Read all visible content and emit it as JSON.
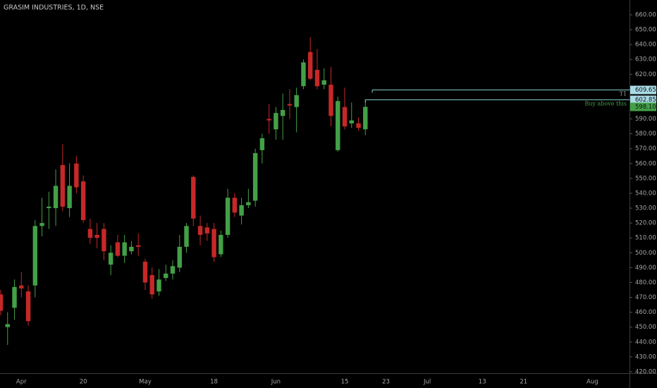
{
  "chart_data": {
    "type": "candlestick",
    "title": "GRASIM INDUSTRIES, 1D, NSE",
    "up_color": "#43a047",
    "down_color": "#c62828",
    "categories": [
      null,
      null,
      null,
      "Apr",
      null,
      null,
      null,
      null,
      null,
      null,
      null,
      null,
      "20",
      null,
      null,
      null,
      null,
      null,
      null,
      null,
      null,
      "May",
      null,
      null,
      null,
      null,
      null,
      null,
      null,
      null,
      null,
      "18",
      null,
      null,
      null,
      null,
      null,
      null,
      null,
      null,
      "Jun",
      null,
      null,
      null,
      null,
      null,
      null,
      null,
      null,
      null,
      "15",
      null,
      null,
      null,
      null,
      null,
      "23",
      null,
      null,
      null,
      null,
      null,
      "Jul",
      null,
      null,
      null,
      null,
      null,
      null,
      null,
      "13",
      null,
      null,
      null,
      null,
      null,
      "21",
      null,
      null,
      null,
      null,
      null,
      null,
      null,
      null,
      null,
      "Aug",
      null,
      null,
      null,
      null,
      null
    ],
    "open": [
      472,
      450,
      463,
      478,
      474,
      478,
      518,
      530,
      530,
      559,
      530,
      560,
      548,
      516,
      512,
      516,
      492,
      507,
      498,
      501,
      505,
      494,
      485,
      474,
      483,
      486,
      490,
      504,
      551,
      518,
      517,
      516,
      499,
      512,
      537,
      525,
      532,
      535,
      569,
      590,
      583,
      592,
      600,
      598,
      612,
      635,
      623,
      613,
      613,
      569,
      598,
      587,
      587,
      583,
      null,
      null,
      null,
      null,
      null,
      null,
      null,
      null,
      null,
      null,
      null,
      null,
      null,
      null,
      null,
      null,
      null,
      null,
      null,
      null,
      null,
      null,
      null,
      null,
      null,
      null,
      null,
      null,
      null,
      null,
      null,
      null,
      null,
      null,
      null,
      null,
      null,
      null
    ],
    "high": [
      475,
      460,
      482,
      487,
      478,
      522,
      537,
      541,
      556,
      573,
      560,
      565,
      552,
      523,
      520,
      520,
      505,
      512,
      512,
      508,
      513,
      496,
      490,
      489,
      492,
      495,
      512,
      520,
      552,
      525,
      520,
      520,
      515,
      543,
      540,
      537,
      543,
      570,
      580,
      600,
      598,
      607,
      610,
      611,
      630,
      645,
      637,
      624,
      625,
      605,
      611,
      601,
      591,
      603,
      null,
      null,
      null,
      null,
      null,
      null,
      null,
      null,
      null,
      null,
      null,
      null,
      null,
      null,
      null,
      null,
      null,
      null,
      null,
      null,
      null,
      null,
      null,
      null,
      null,
      null,
      null,
      null,
      null,
      null,
      null,
      null,
      null,
      null,
      null,
      null,
      null,
      null
    ],
    "low": [
      458,
      438,
      455,
      470,
      451,
      470,
      511,
      516,
      518,
      528,
      524,
      540,
      520,
      506,
      503,
      495,
      485,
      497,
      493,
      499,
      498,
      475,
      469,
      471,
      481,
      482,
      487,
      500,
      518,
      505,
      508,
      494,
      497,
      510,
      524,
      519,
      530,
      531,
      560,
      580,
      576,
      576,
      590,
      581,
      610,
      616,
      610,
      610,
      585,
      568,
      583,
      584,
      582,
      579,
      null,
      null,
      null,
      null,
      null,
      null,
      null,
      null,
      null,
      null,
      null,
      null,
      null,
      null,
      null,
      null,
      null,
      null,
      null,
      null,
      null,
      null,
      null,
      null,
      null,
      null,
      null,
      null,
      null,
      null,
      null,
      null,
      null,
      null,
      null,
      null,
      null,
      null
    ],
    "close": [
      461,
      452,
      477,
      476,
      454,
      518,
      520,
      531,
      545,
      531,
      545,
      544,
      522,
      510,
      510,
      501,
      500,
      498,
      507,
      504,
      504,
      480,
      472,
      482,
      486,
      491,
      504,
      518,
      523,
      512,
      513,
      497,
      512,
      537,
      527,
      532,
      534,
      567,
      577,
      589,
      594,
      596,
      599,
      606,
      628,
      617,
      612,
      616,
      592,
      602,
      585,
      589,
      584,
      598.1,
      null,
      null,
      null,
      null,
      null,
      null,
      null,
      null,
      null,
      null,
      null,
      null,
      null,
      null,
      null,
      null,
      null,
      null,
      null,
      null,
      null,
      null,
      null,
      null,
      null,
      null,
      null,
      null,
      null,
      null,
      null,
      null,
      null,
      null,
      null,
      null,
      null,
      null
    ],
    "ylim": [
      417,
      667
    ],
    "yticks": [
      {
        "value": 420,
        "label": "420.00"
      },
      {
        "value": 430,
        "label": "430.00"
      },
      {
        "value": 440,
        "label": "440.00"
      },
      {
        "value": 450,
        "label": "450.00"
      },
      {
        "value": 460,
        "label": "460.00"
      },
      {
        "value": 470,
        "label": "470.00"
      },
      {
        "value": 480,
        "label": "480.00"
      },
      {
        "value": 490,
        "label": "490.00"
      },
      {
        "value": 500,
        "label": "500.00"
      },
      {
        "value": 510,
        "label": "510.00"
      },
      {
        "value": 520,
        "label": "520.00"
      },
      {
        "value": 530,
        "label": "530.00"
      },
      {
        "value": 540,
        "label": "540.00"
      },
      {
        "value": 550,
        "label": "550.00"
      },
      {
        "value": 560,
        "label": "560.00"
      },
      {
        "value": 570,
        "label": "570.00"
      },
      {
        "value": 580,
        "label": "580.00"
      },
      {
        "value": 590,
        "label": "590.00"
      },
      {
        "value": 600,
        "label": "600.00"
      },
      {
        "value": 610,
        "label": "610.00"
      },
      {
        "value": 620,
        "label": "620.00"
      },
      {
        "value": 630,
        "label": "630.00"
      },
      {
        "value": 640,
        "label": "640.00"
      },
      {
        "value": 650,
        "label": "650.00"
      },
      {
        "value": 660,
        "label": "660.00"
      }
    ],
    "levels": [
      {
        "label": "T1",
        "value": 609.65,
        "color": "#80cbc4",
        "label_color": "#9e9e9e",
        "tag_color": "#a8dbe6"
      },
      {
        "label": "Buy above this",
        "value": 602.85,
        "color": "#80cbc4",
        "label_color": "#43a047",
        "tag_color": "#a8dbe6"
      }
    ],
    "last_price": {
      "value": 598.1,
      "label": "598.10",
      "color": "#43a047"
    }
  }
}
